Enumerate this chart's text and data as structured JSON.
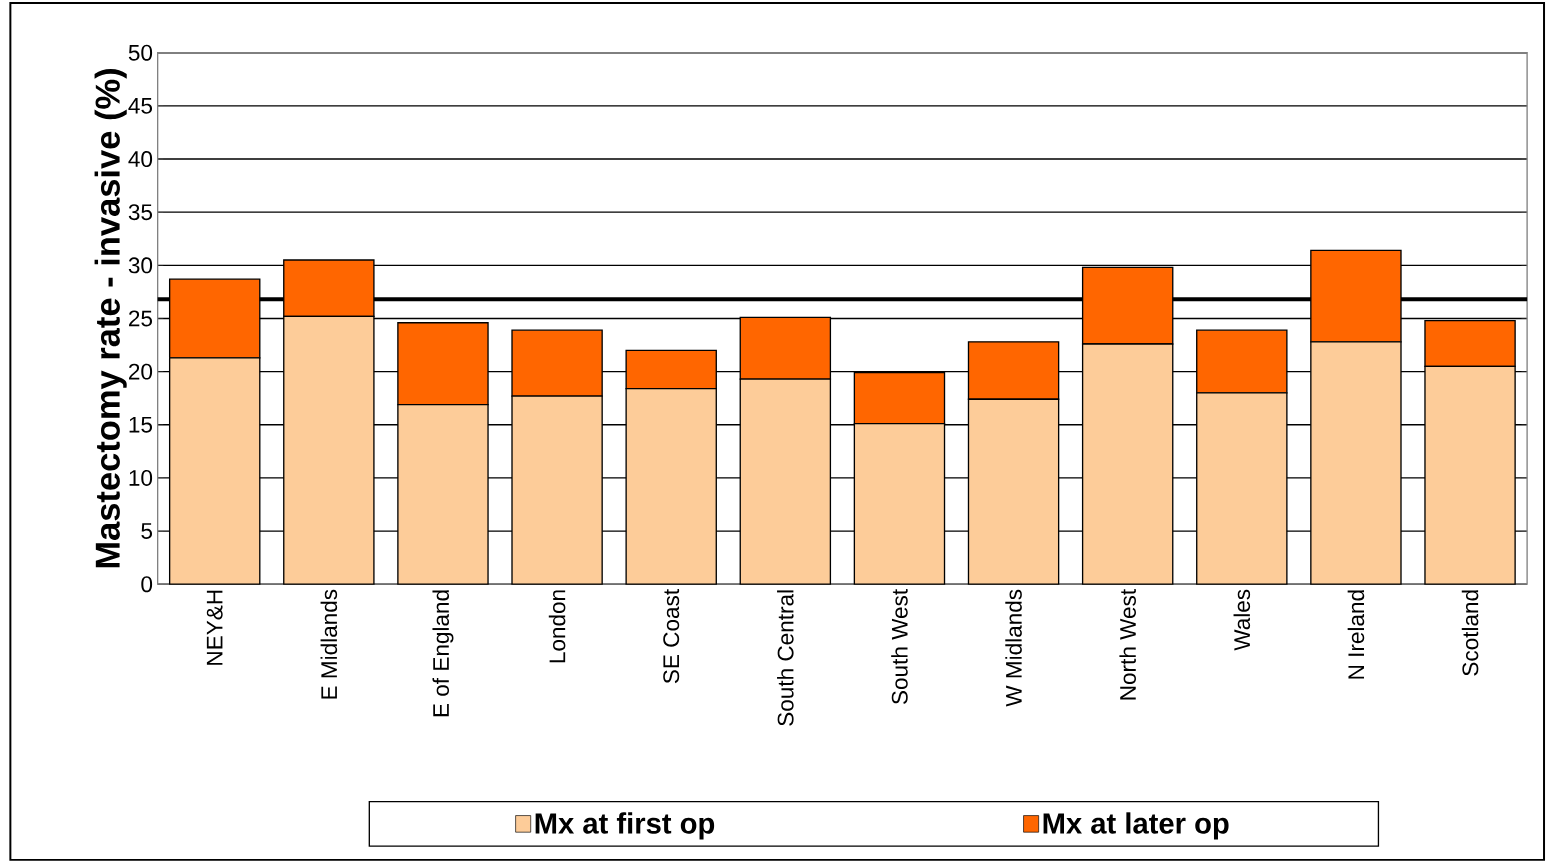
{
  "chart_data": {
    "type": "bar",
    "ylabel": "Mastectomy rate - invasive (%)",
    "categories": [
      "NEY&H",
      "E Midlands",
      "E of England",
      "London",
      "SE Coast",
      "South Central",
      "South West",
      "W Midlands",
      "North West",
      "Wales",
      "N Ireland",
      "Scotland"
    ],
    "series": [
      {
        "name": "Mx at first op",
        "color": "#fdcc99",
        "values": [
          21.3,
          25.2,
          16.9,
          17.7,
          18.4,
          19.3,
          15.1,
          17.4,
          22.6,
          18.0,
          22.8,
          20.5
        ]
      },
      {
        "name": "Mx at later op",
        "color": "#ff6600",
        "values": [
          7.4,
          5.3,
          7.7,
          6.2,
          3.6,
          5.8,
          4.8,
          5.4,
          7.2,
          5.9,
          8.6,
          4.3
        ]
      }
    ],
    "stacked": true,
    "ylim": [
      0,
      50
    ],
    "yticks": [
      0,
      5,
      10,
      15,
      20,
      25,
      30,
      35,
      40,
      45,
      50
    ],
    "grid": "y",
    "legend": "bottom",
    "ref_lines": [
      {
        "axis": "y",
        "value": 26.8,
        "color": "#000000"
      }
    ]
  }
}
